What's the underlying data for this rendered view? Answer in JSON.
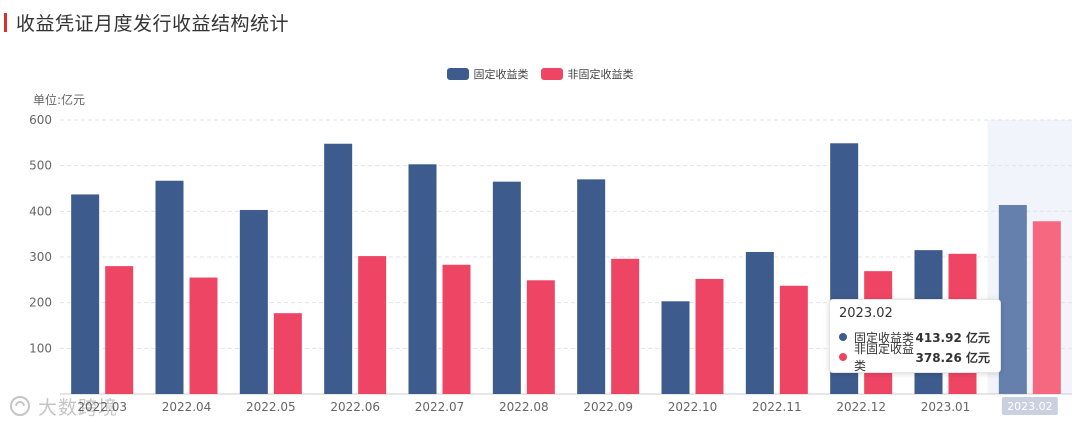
{
  "title": "收益凭证月度发行收益结构统计",
  "unit_label": "单位:亿元",
  "colors": {
    "fixed": "#3d5b8c",
    "fixed_highlight": "#6580ad",
    "nonfixed": "#ef4565",
    "nonfixed_highlight": "#f5687f",
    "title_accent": "#d7312f"
  },
  "chart_data": {
    "type": "bar",
    "categories": [
      "2022.03",
      "2022.04",
      "2022.05",
      "2022.06",
      "2022.07",
      "2022.08",
      "2022.09",
      "2022.10",
      "2022.11",
      "2022.12",
      "2023.01",
      "2023.02"
    ],
    "series": [
      {
        "name": "固定收益类",
        "values": [
          437,
          467,
          403,
          548,
          503,
          465,
          470,
          203,
          311,
          549,
          315,
          413.92
        ]
      },
      {
        "name": "非固定收益类",
        "values": [
          280,
          255,
          177,
          302,
          283,
          249,
          296,
          252,
          237,
          269,
          307,
          378.26
        ]
      }
    ],
    "ylim": [
      0,
      600
    ],
    "yticks": [
      100,
      200,
      300,
      400,
      500,
      600
    ],
    "grid": true,
    "legend_position": "top-center",
    "highlighted_category": "2023.02"
  },
  "tooltip": {
    "title": "2023.02",
    "rows": [
      {
        "name": "固定收益类",
        "value": "413.92 亿元"
      },
      {
        "name": "非固定收益类",
        "value": "378.26 亿元"
      }
    ]
  },
  "watermark": "大数跨境"
}
